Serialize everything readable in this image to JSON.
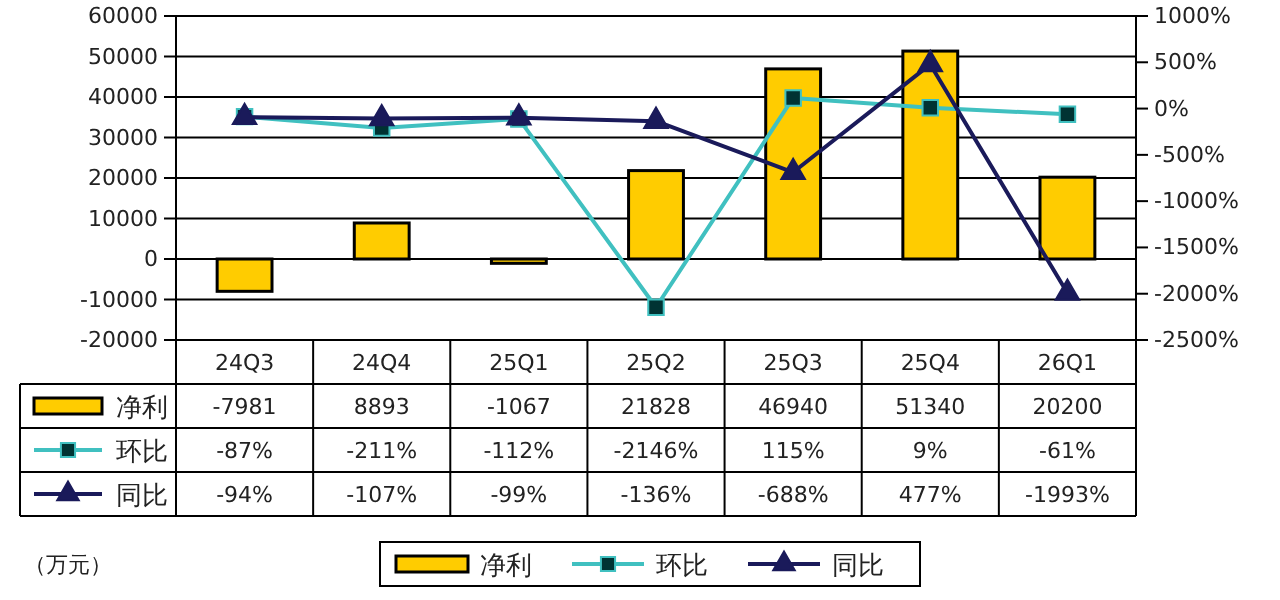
{
  "chart_data": {
    "type": "bar",
    "categories": [
      "24Q3",
      "24Q4",
      "25Q1",
      "25Q2",
      "25Q3",
      "25Q4",
      "26Q1"
    ],
    "series": [
      {
        "name": "净利",
        "color": "#ffcc00",
        "values": [
          -7981,
          8893,
          -1067,
          21828,
          46940,
          51340,
          20200
        ],
        "value_labels": [
          "-7981",
          "8893",
          "-1067",
          "21828",
          "46940",
          "51340",
          "20200"
        ]
      },
      {
        "name": "环比",
        "type": "line",
        "axis": "y2",
        "marker": "square",
        "color": "#40c0c0",
        "values": [
          -87,
          -211,
          -112,
          -2146,
          115,
          9,
          -61
        ],
        "value_labels": [
          "-87%",
          "-211%",
          "-112%",
          "-2146%",
          "115%",
          "9%",
          "-61%"
        ]
      },
      {
        "name": "同比",
        "type": "line",
        "axis": "y2",
        "marker": "triangle",
        "color": "#1a1a5a",
        "values": [
          -94,
          -107,
          -99,
          -136,
          -688,
          477,
          -1993
        ],
        "value_labels": [
          "-94%",
          "-107%",
          "-99%",
          "-136%",
          "-688%",
          "477%",
          "-1993%"
        ]
      }
    ],
    "ylim": [
      -20000,
      60000
    ],
    "yticks": [
      -20000,
      -10000,
      0,
      10000,
      20000,
      30000,
      40000,
      50000,
      60000
    ],
    "y2lim": [
      -2500,
      1000
    ],
    "y2ticks": [
      {
        "value": -2500,
        "label": "-2500%"
      },
      {
        "value": -2000,
        "label": "-2000%"
      },
      {
        "value": -1500,
        "label": "-1500%"
      },
      {
        "value": -1000,
        "label": "-1000%"
      },
      {
        "value": -500,
        "label": "-500%"
      },
      {
        "value": 0,
        "label": "0%"
      },
      {
        "value": 500,
        "label": "500%"
      },
      {
        "value": 1000,
        "label": "1000%"
      }
    ],
    "grid": "y",
    "legend": "bottom",
    "annotations": [
      "（万元）"
    ]
  }
}
